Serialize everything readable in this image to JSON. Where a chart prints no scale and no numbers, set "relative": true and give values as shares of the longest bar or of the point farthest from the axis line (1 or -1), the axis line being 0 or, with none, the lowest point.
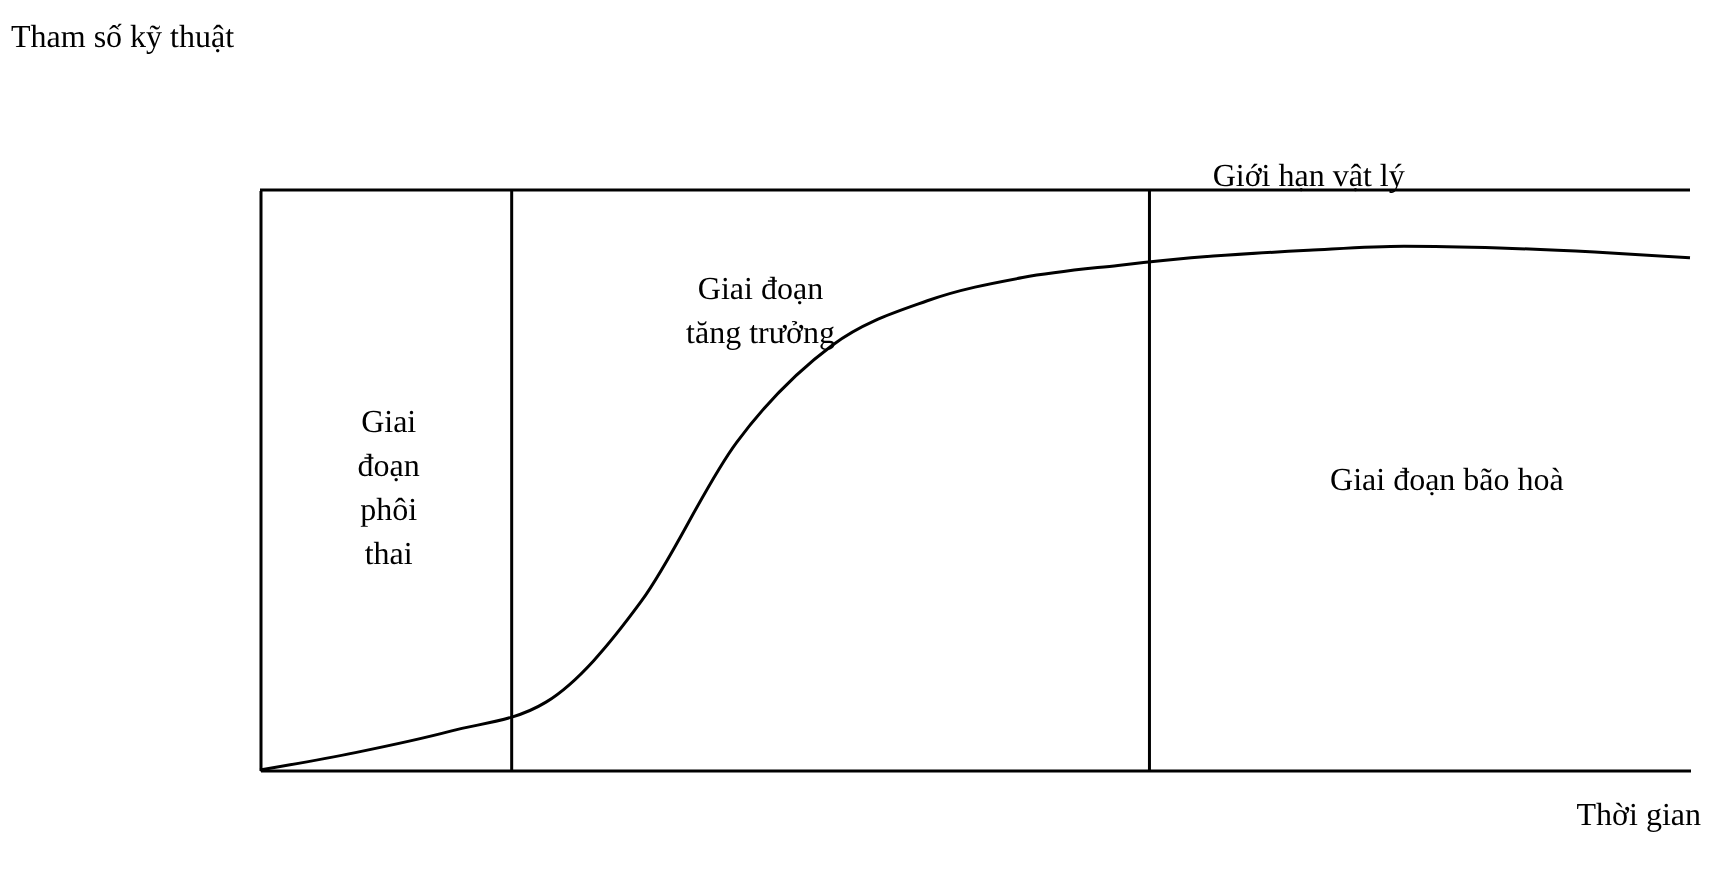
{
  "chart_data": {
    "type": "line",
    "relative": true,
    "xlabel": "Thời gian",
    "ylabel": "Tham số kỹ thuật",
    "tick_labels": false,
    "marker": "none",
    "line_style": "solid",
    "categories": [
      null,
      null,
      null,
      null,
      null,
      null,
      null,
      null,
      null,
      null,
      null,
      null,
      null,
      null,
      null,
      null
    ],
    "series": [
      {
        "color": "#000000",
        "values": [
          0,
          0.03,
          0.067,
          0.117,
          0.291,
          0.565,
          0.732,
          0.809,
          0.849,
          0.87,
          0.886,
          0.896,
          0.903,
          0.9,
          0.893,
          0.883
        ]
      },
      {
        "name": "Giới hạn vật lý",
        "color": "#000000",
        "values": [
          1,
          1,
          1,
          1,
          1,
          1,
          1,
          1,
          1,
          1,
          1,
          1,
          1,
          1,
          1,
          1
        ]
      }
    ],
    "annotations": [
      "Giai đoạn phôi thai",
      "Giai đoạn tăng trưởng",
      "Giai đoạn bão hoà"
    ]
  }
}
